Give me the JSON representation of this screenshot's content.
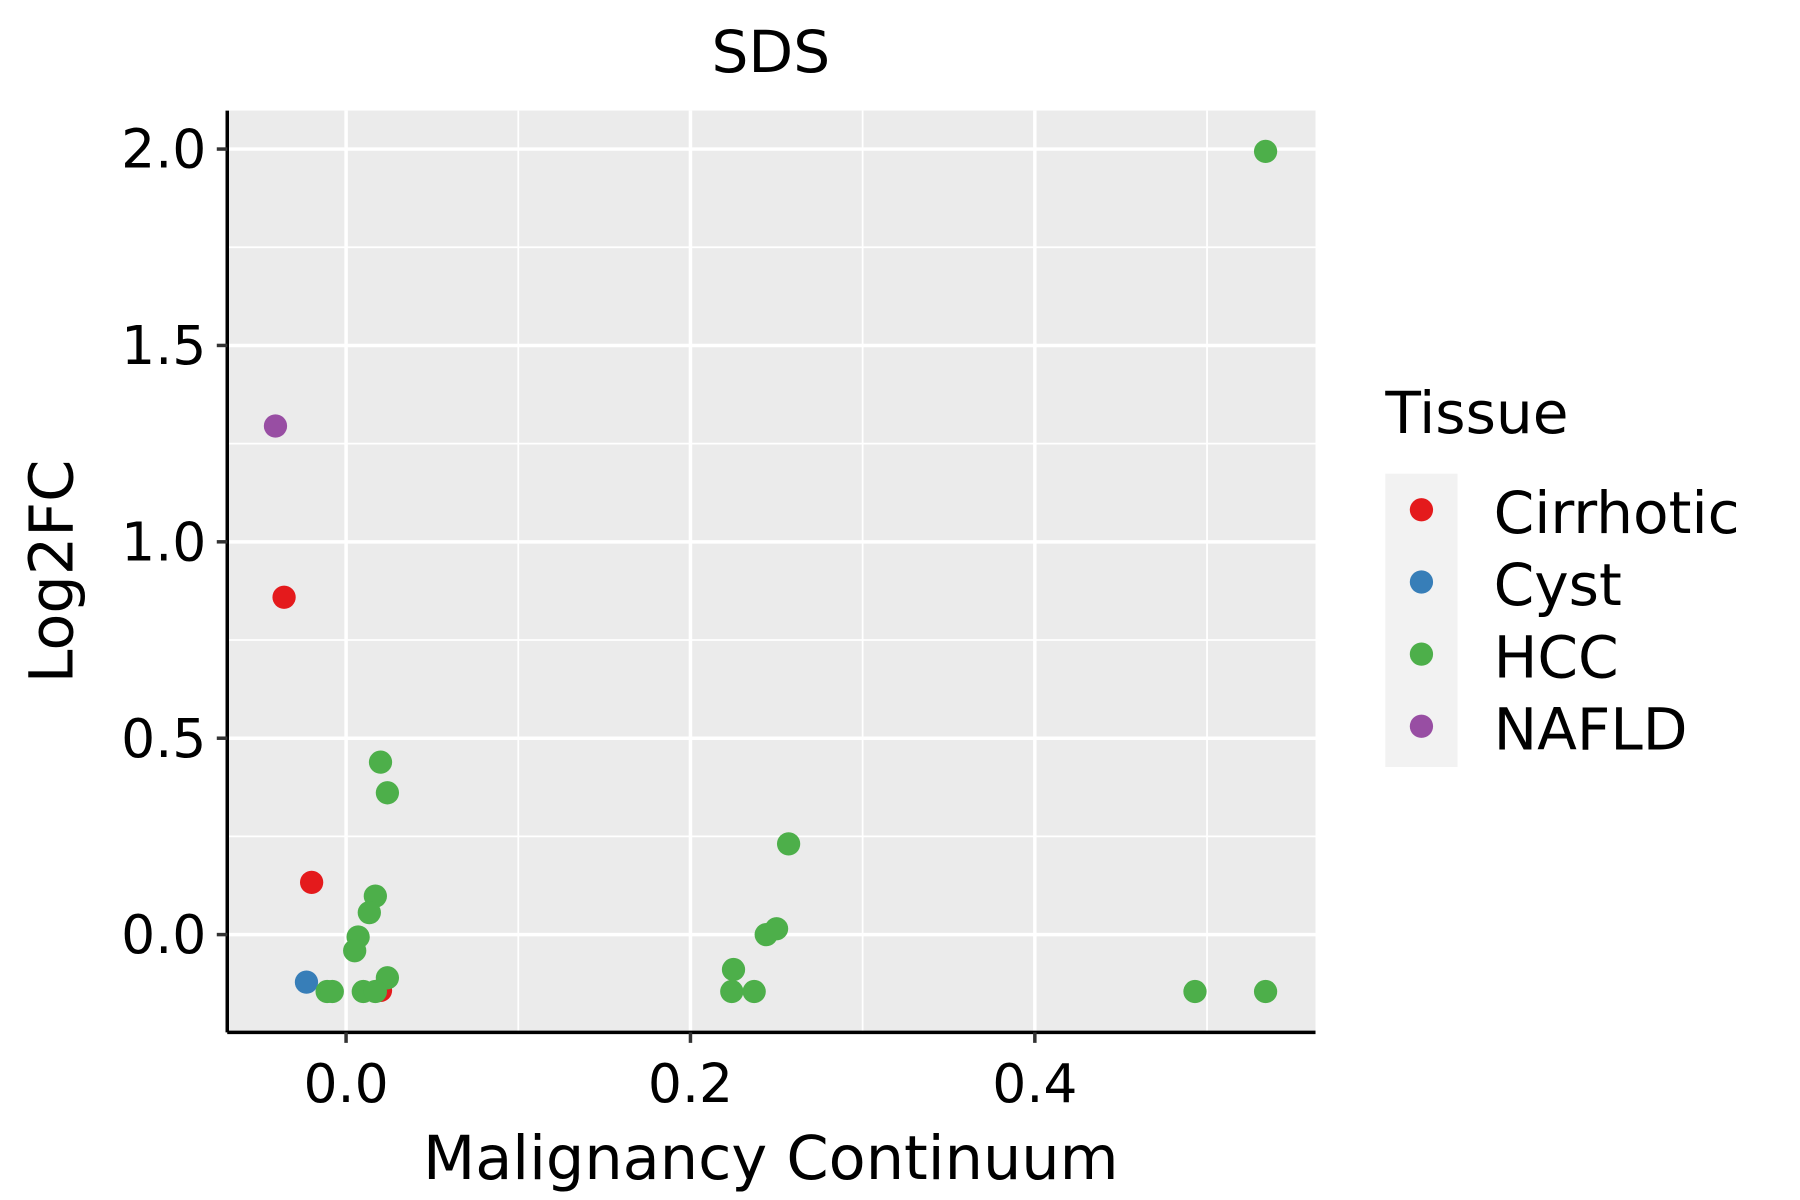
{
  "chart_data": {
    "type": "scatter",
    "title": "SDS",
    "xlabel": "Malignancy Continuum",
    "ylabel": "Log2FC",
    "xlim": [
      -0.069,
      0.563
    ],
    "ylim": [
      -0.249,
      2.098
    ],
    "xticks": [
      0.0,
      0.2,
      0.4
    ],
    "xtick_labels": [
      "0.0",
      "0.2",
      "0.4"
    ],
    "yticks": [
      0.0,
      0.5,
      1.0,
      1.5,
      2.0
    ],
    "ytick_labels": [
      "0.0",
      "0.5",
      "1.0",
      "1.5",
      "2.0"
    ],
    "grid": true,
    "legend": {
      "title": "Tissue",
      "placement": "right"
    },
    "series": [
      {
        "name": "Cirrhotic",
        "color": "#E41A1C",
        "points": [
          [
            -0.036,
            0.859
          ],
          [
            -0.02,
            0.133
          ],
          [
            0.02,
            -0.142
          ]
        ]
      },
      {
        "name": "Cyst",
        "color": "#377EB8",
        "points": [
          [
            -0.023,
            -0.121
          ]
        ]
      },
      {
        "name": "HCC",
        "color": "#4DAF4A",
        "points": [
          [
            0.534,
            1.994
          ],
          [
            0.02,
            0.439
          ],
          [
            0.024,
            0.361
          ],
          [
            0.257,
            0.231
          ],
          [
            0.017,
            0.098
          ],
          [
            0.0135,
            0.056
          ],
          [
            0.007,
            -0.006
          ],
          [
            0.005,
            -0.041
          ],
          [
            0.024,
            -0.11
          ],
          [
            -0.011,
            -0.145
          ],
          [
            -0.008,
            -0.145
          ],
          [
            0.01,
            -0.145
          ],
          [
            0.017,
            -0.145
          ],
          [
            0.225,
            -0.089
          ],
          [
            0.224,
            -0.145
          ],
          [
            0.237,
            -0.145
          ],
          [
            0.244,
            0.0
          ],
          [
            0.25,
            0.015
          ],
          [
            0.493,
            -0.145
          ],
          [
            0.534,
            -0.145
          ]
        ]
      },
      {
        "name": "NAFLD",
        "color": "#984EA3",
        "points": [
          [
            -0.041,
            1.295
          ]
        ]
      }
    ]
  }
}
